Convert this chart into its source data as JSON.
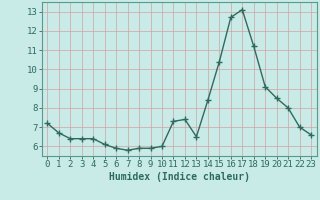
{
  "x": [
    0,
    1,
    2,
    3,
    4,
    5,
    6,
    7,
    8,
    9,
    10,
    11,
    12,
    13,
    14,
    15,
    16,
    17,
    18,
    19,
    20,
    21,
    22,
    23
  ],
  "y": [
    7.2,
    6.7,
    6.4,
    6.4,
    6.4,
    6.1,
    5.9,
    5.8,
    5.9,
    5.9,
    6.0,
    7.3,
    7.4,
    6.5,
    8.4,
    10.4,
    12.7,
    13.1,
    11.2,
    9.1,
    8.5,
    8.0,
    7.0,
    6.6
  ],
  "line_color": "#2e6b5e",
  "marker": "+",
  "marker_size": 4,
  "bg_color": "#c8ebe8",
  "grid_color_major": "#d4a0a0",
  "grid_color_minor": "#d4baba",
  "xlabel": "Humidex (Indice chaleur)",
  "xlabel_fontsize": 7,
  "ylim": [
    5.5,
    13.5
  ],
  "xlim": [
    -0.5,
    23.5
  ],
  "yticks": [
    6,
    7,
    8,
    9,
    10,
    11,
    12,
    13
  ],
  "xticks": [
    0,
    1,
    2,
    3,
    4,
    5,
    6,
    7,
    8,
    9,
    10,
    11,
    12,
    13,
    14,
    15,
    16,
    17,
    18,
    19,
    20,
    21,
    22,
    23
  ],
  "tick_color": "#2e6b5e",
  "tick_fontsize": 6.5,
  "line_width": 1.0,
  "axis_color": "#2e6b5e",
  "spine_color": "#5a9a8a"
}
